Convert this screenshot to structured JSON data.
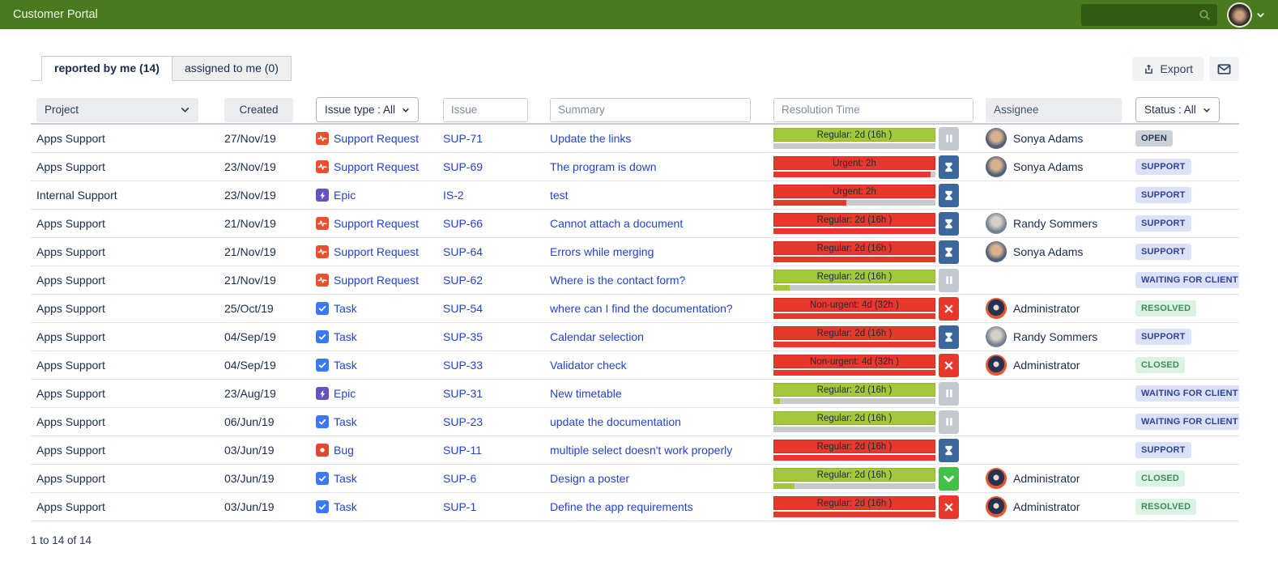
{
  "header": {
    "title": "Customer Portal",
    "search_placeholder": "",
    "search_icon": "search-icon",
    "user_avatar_icon": "user-avatar",
    "user_chevron_icon": "chevron-down-icon",
    "bar_color": "#4a7a1e"
  },
  "tabs": [
    {
      "label": "reported by me (14)",
      "active": true
    },
    {
      "label": "assigned to me (0)",
      "active": false
    }
  ],
  "toolbar": {
    "export_label": "Export",
    "export_icon": "upload-icon",
    "mail_icon": "envelope-icon"
  },
  "filters": {
    "project_label": "Project",
    "created_label": "Created",
    "issue_type_label": "Issue type : All",
    "issue_placeholder": "Issue",
    "summary_placeholder": "Summary",
    "resolution_placeholder": "Resolution Time",
    "assignee_label": "Assignee",
    "status_label": "Status : All"
  },
  "colors": {
    "link_blue": "#2343cd",
    "sla_green": "#a4c83c",
    "sla_red": "#e8382b",
    "badge_gray_bg": "#ccd1d8",
    "badge_blue_bg": "#dbe2f7",
    "badge_green_bg": "#dcf3e3"
  },
  "rows": [
    {
      "project": "Apps Support",
      "created": "27/Nov/19",
      "type": {
        "name": "Support Request",
        "icon": "support-request"
      },
      "issue": "SUP-71",
      "summary": "Update the links",
      "resolution": {
        "label": "Regular: 2d (16h )",
        "color": "green",
        "progress": 0,
        "icon": "pause"
      },
      "assignee": {
        "name": "Sonya Adams",
        "avatar": "sonya"
      },
      "status": {
        "label": "OPEN",
        "style": "gray"
      }
    },
    {
      "project": "Apps Support",
      "created": "23/Nov/19",
      "type": {
        "name": "Support Request",
        "icon": "support-request"
      },
      "issue": "SUP-69",
      "summary": "The program is down",
      "resolution": {
        "label": "Urgent: 2h",
        "color": "red",
        "progress": 0.97,
        "icon": "hourglass"
      },
      "assignee": {
        "name": "Sonya Adams",
        "avatar": "sonya"
      },
      "status": {
        "label": "SUPPORT",
        "style": "blue"
      }
    },
    {
      "project": "Internal Support",
      "created": "23/Nov/19",
      "type": {
        "name": "Epic",
        "icon": "epic"
      },
      "issue": "IS-2",
      "summary": "test",
      "resolution": {
        "label": "Urgent: 2h",
        "color": "red",
        "progress": 0.45,
        "icon": "hourglass"
      },
      "assignee": null,
      "status": {
        "label": "SUPPORT",
        "style": "blue"
      }
    },
    {
      "project": "Apps Support",
      "created": "21/Nov/19",
      "type": {
        "name": "Support Request",
        "icon": "support-request"
      },
      "issue": "SUP-66",
      "summary": "Cannot attach a document",
      "resolution": {
        "label": "Regular: 2d (16h )",
        "color": "red",
        "progress": 1,
        "icon": "hourglass"
      },
      "assignee": {
        "name": "Randy Sommers",
        "avatar": "randy"
      },
      "status": {
        "label": "SUPPORT",
        "style": "blue"
      }
    },
    {
      "project": "Apps Support",
      "created": "21/Nov/19",
      "type": {
        "name": "Support Request",
        "icon": "support-request"
      },
      "issue": "SUP-64",
      "summary": "Errors while merging",
      "resolution": {
        "label": "Regular: 2d (16h )",
        "color": "red",
        "progress": 1,
        "icon": "hourglass"
      },
      "assignee": {
        "name": "Sonya Adams",
        "avatar": "sonya"
      },
      "status": {
        "label": "SUPPORT",
        "style": "blue"
      }
    },
    {
      "project": "Apps Support",
      "created": "21/Nov/19",
      "type": {
        "name": "Support Request",
        "icon": "support-request"
      },
      "issue": "SUP-62",
      "summary": "Where is the contact form?",
      "resolution": {
        "label": "Regular: 2d (16h )",
        "color": "green",
        "progress": 0.1,
        "icon": "pause"
      },
      "assignee": null,
      "status": {
        "label": "WAITING FOR CLIENT",
        "style": "blue"
      }
    },
    {
      "project": "Apps Support",
      "created": "25/Oct/19",
      "type": {
        "name": "Task",
        "icon": "task"
      },
      "issue": "SUP-54",
      "summary": "where can I find the documentation?",
      "resolution": {
        "label": "Non-urgent: 4d (32h )",
        "color": "red",
        "progress": 1,
        "icon": "x"
      },
      "assignee": {
        "name": "Administrator",
        "avatar": "admin"
      },
      "status": {
        "label": "RESOLVED",
        "style": "green"
      }
    },
    {
      "project": "Apps Support",
      "created": "04/Sep/19",
      "type": {
        "name": "Task",
        "icon": "task"
      },
      "issue": "SUP-35",
      "summary": "Calendar selection",
      "resolution": {
        "label": "Regular: 2d (16h )",
        "color": "red",
        "progress": 1,
        "icon": "hourglass"
      },
      "assignee": {
        "name": "Randy Sommers",
        "avatar": "randy"
      },
      "status": {
        "label": "SUPPORT",
        "style": "blue"
      }
    },
    {
      "project": "Apps Support",
      "created": "04/Sep/19",
      "type": {
        "name": "Task",
        "icon": "task"
      },
      "issue": "SUP-33",
      "summary": "Validator check",
      "resolution": {
        "label": "Non-urgent: 4d (32h )",
        "color": "red",
        "progress": 1,
        "icon": "x"
      },
      "assignee": {
        "name": "Administrator",
        "avatar": "admin"
      },
      "status": {
        "label": "CLOSED",
        "style": "green"
      }
    },
    {
      "project": "Apps Support",
      "created": "23/Aug/19",
      "type": {
        "name": "Epic",
        "icon": "epic"
      },
      "issue": "SUP-31",
      "summary": "New timetable",
      "resolution": {
        "label": "Regular: 2d (16h )",
        "color": "green",
        "progress": 0.04,
        "icon": "pause"
      },
      "assignee": null,
      "status": {
        "label": "WAITING FOR CLIENT",
        "style": "blue"
      }
    },
    {
      "project": "Apps Support",
      "created": "06/Jun/19",
      "type": {
        "name": "Task",
        "icon": "task"
      },
      "issue": "SUP-23",
      "summary": "update the documentation",
      "resolution": {
        "label": "Regular: 2d (16h )",
        "color": "green",
        "progress": 0,
        "icon": "pause"
      },
      "assignee": null,
      "status": {
        "label": "WAITING FOR CLIENT",
        "style": "blue"
      }
    },
    {
      "project": "Apps Support",
      "created": "03/Jun/19",
      "type": {
        "name": "Bug",
        "icon": "bug"
      },
      "issue": "SUP-11",
      "summary": "multiple select doesn't work properly",
      "resolution": {
        "label": "Regular: 2d (16h )",
        "color": "red",
        "progress": 1,
        "icon": "hourglass"
      },
      "assignee": null,
      "status": {
        "label": "SUPPORT",
        "style": "blue"
      }
    },
    {
      "project": "Apps Support",
      "created": "03/Jun/19",
      "type": {
        "name": "Task",
        "icon": "task"
      },
      "issue": "SUP-6",
      "summary": "Design a poster",
      "resolution": {
        "label": "Regular: 2d (16h )",
        "color": "green",
        "progress": 0.13,
        "icon": "check"
      },
      "assignee": {
        "name": "Administrator",
        "avatar": "admin"
      },
      "status": {
        "label": "CLOSED",
        "style": "green"
      }
    },
    {
      "project": "Apps Support",
      "created": "03/Jun/19",
      "type": {
        "name": "Task",
        "icon": "task"
      },
      "issue": "SUP-1",
      "summary": "Define the app requirements",
      "resolution": {
        "label": "Regular: 2d (16h )",
        "color": "red",
        "progress": 1,
        "icon": "x"
      },
      "assignee": {
        "name": "Administrator",
        "avatar": "admin"
      },
      "status": {
        "label": "RESOLVED",
        "style": "green"
      }
    }
  ],
  "footer": {
    "range_label": "1 to 14 of 14"
  }
}
